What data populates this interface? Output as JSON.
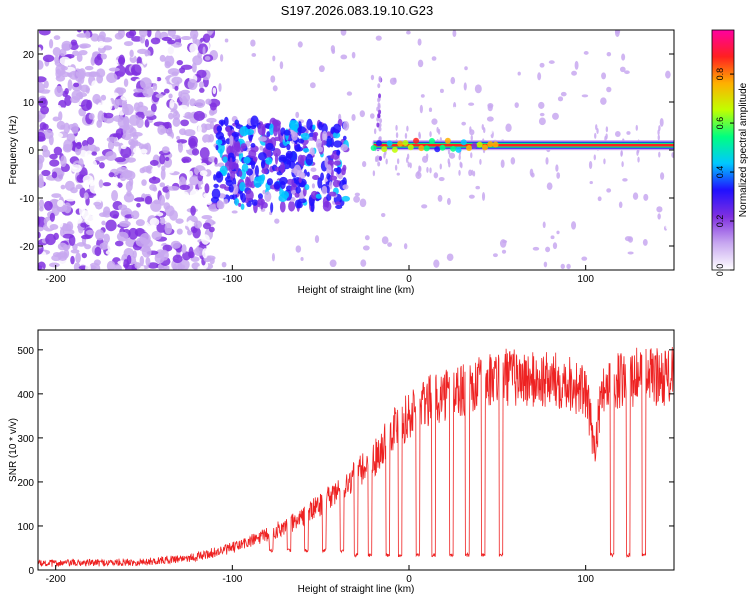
{
  "title": "S197.2026.083.19.10.G23",
  "chart_data": [
    {
      "type": "heatmap",
      "title": "S197.2026.083.19.10.G23",
      "xlabel": "Height of straight line (km)",
      "ylabel": "Frequency (Hz)",
      "xlim": [
        -210,
        150
      ],
      "ylim": [
        -25,
        25
      ],
      "x_ticks": [
        -200,
        -100,
        0,
        100
      ],
      "y_ticks": [
        -20,
        -10,
        0,
        10,
        20
      ],
      "x_tick_labels": [
        "-200",
        "-100",
        "0",
        "100"
      ],
      "y_tick_labels": [
        "-20",
        "-10",
        "0",
        "10",
        "20"
      ],
      "colorbar": {
        "label": "Normalized spectral amplitude",
        "range": [
          0,
          0.98
        ],
        "ticks": [
          0.0,
          0.2,
          0.4,
          0.6,
          0.8
        ],
        "tick_labels": [
          "0.0",
          "0.2",
          "0.4",
          "0.6",
          "0.8"
        ],
        "colors": [
          "#ffffff",
          "#c8a8f0",
          "#8030e0",
          "#2010ff",
          "#00c8ff",
          "#00ff80",
          "#c0ff00",
          "#ffb000",
          "#ff2020",
          "#ff00a0"
        ]
      },
      "features": [
        {
          "name": "scattered noise",
          "x_range": [
            -210,
            -110
          ],
          "freq_range": [
            -25,
            25
          ],
          "amplitude": 0.15
        },
        {
          "name": "transition cluster",
          "x_range": [
            -110,
            -35
          ],
          "freq_range": [
            -12,
            6
          ],
          "amplitude": 0.3
        },
        {
          "name": "spike",
          "x": -17,
          "freq_range": [
            -3,
            15
          ],
          "amplitude": 0.15
        },
        {
          "name": "carrier line",
          "x_range": [
            -20,
            150
          ],
          "freq": 1,
          "amplitude": 0.9
        }
      ]
    },
    {
      "type": "line",
      "xlabel": "Height of straight line (km)",
      "ylabel": "SNR (10 * v/v)",
      "xlim": [
        -210,
        150
      ],
      "ylim": [
        0,
        545
      ],
      "x_ticks": [
        -200,
        -100,
        0,
        100
      ],
      "y_ticks": [
        0,
        100,
        200,
        300,
        400,
        500
      ],
      "x_tick_labels": [
        "-200",
        "-100",
        "0",
        "100"
      ],
      "y_tick_labels": [
        "0",
        "100",
        "200",
        "300",
        "400",
        "500"
      ],
      "color": "#ee2222",
      "series": [
        {
          "name": "SNR trend",
          "x": [
            -210,
            -150,
            -120,
            -100,
            -80,
            -60,
            -40,
            -20,
            -10,
            0,
            10,
            20,
            40,
            55,
            70,
            90,
            100,
            105,
            110,
            130,
            150
          ],
          "values": [
            15,
            18,
            30,
            50,
            80,
            120,
            180,
            250,
            320,
            350,
            380,
            400,
            420,
            440,
            430,
            430,
            400,
            280,
            420,
            440,
            440
          ]
        }
      ],
      "dropouts": [
        {
          "x": -78,
          "level": 40
        },
        {
          "x": -68,
          "level": 40
        },
        {
          "x": -58,
          "level": 40
        },
        {
          "x": -48,
          "level": 40
        },
        {
          "x": -38,
          "level": 40
        },
        {
          "x": -30,
          "level": 30
        },
        {
          "x": -22,
          "level": 30
        },
        {
          "x": -12,
          "level": 30
        },
        {
          "x": -5,
          "level": 30
        },
        {
          "x": 5,
          "level": 30
        },
        {
          "x": 14,
          "level": 30
        },
        {
          "x": 24,
          "level": 30
        },
        {
          "x": 33,
          "level": 30
        },
        {
          "x": 42,
          "level": 30
        },
        {
          "x": 52,
          "level": 30
        },
        {
          "x": 115,
          "level": 30
        },
        {
          "x": 124,
          "level": 30
        },
        {
          "x": 133,
          "level": 30
        }
      ]
    }
  ]
}
